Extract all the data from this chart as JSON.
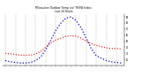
{
  "title": "Milwaukee Outdoor Temp (vs) THSW Index\nLast 24 Hours",
  "hours": [
    0,
    1,
    2,
    3,
    4,
    5,
    6,
    7,
    8,
    9,
    10,
    11,
    12,
    13,
    14,
    15,
    16,
    17,
    18,
    19,
    20,
    21,
    22,
    23
  ],
  "temp": [
    30,
    29,
    28,
    27,
    27,
    27,
    29,
    33,
    40,
    47,
    52,
    55,
    58,
    59,
    58,
    55,
    50,
    46,
    43,
    41,
    39,
    38,
    38,
    37
  ],
  "thsw": [
    18,
    16,
    15,
    14,
    14,
    15,
    18,
    24,
    36,
    52,
    68,
    80,
    88,
    90,
    84,
    72,
    55,
    38,
    26,
    22,
    18,
    16,
    15,
    14
  ],
  "temp_color": "#dd0000",
  "thsw_color": "#0000cc",
  "bg_color": "#ffffff",
  "grid_color": "#888888",
  "ylim_min": 10,
  "ylim_max": 95,
  "xlim_min": -0.5,
  "xlim_max": 23.5
}
